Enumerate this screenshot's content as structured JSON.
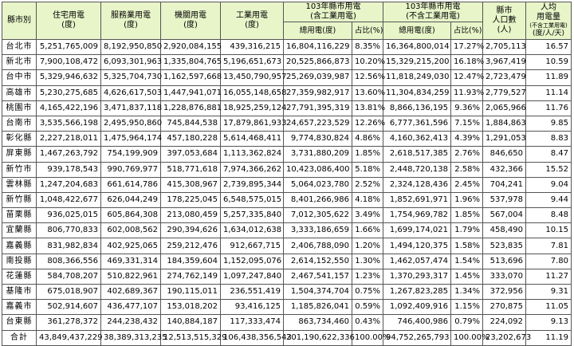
{
  "headers": {
    "county": "縣市別",
    "residential_l1": "住宅用電",
    "residential_l2": "(度)",
    "service_l1": "服務業用電",
    "service_l2": "(度)",
    "govt_l1": "機關用電",
    "govt_l2": "(度)",
    "industrial_l1": "工業用電",
    "industrial_l2": "(度)",
    "incl_l1": "103年縣市用電",
    "incl_l2": "(含工業用電)",
    "excl_l1": "103年縣市用電",
    "excl_l2": "(不含工業用電)",
    "total_usage": "總用電(度)",
    "share": "占比(%)",
    "pop_l1": "縣市",
    "pop_l2": "人口數",
    "pop_l3": "(人)",
    "percap_l1": "人均",
    "percap_l2": "用電量",
    "percap_l3": "(不含工業用電)",
    "percap_l4": "(度/人/天)"
  },
  "rows": [
    {
      "county": "台北市",
      "residential": "5,251,765,009",
      "service": "8,192,950,850",
      "govt": "2,920,084,155",
      "industrial": "439,316,215",
      "incl_total": "16,804,116,229",
      "incl_share": "8.35%",
      "excl_total": "16,364,800,014",
      "excl_share": "17.27%",
      "population": "2,705,113",
      "per_capita": "16.57"
    },
    {
      "county": "新北市",
      "residential": "7,900,108,472",
      "service": "6,093,301,963",
      "govt": "1,335,804,765",
      "industrial": "5,196,651,673",
      "incl_total": "20,525,866,873",
      "incl_share": "10.20%",
      "excl_total": "15,329,215,200",
      "excl_share": "16.18%",
      "population": "3,967,419",
      "per_capita": "10.59"
    },
    {
      "county": "台中市",
      "residential": "5,329,946,632",
      "service": "5,325,704,730",
      "govt": "1,162,597,668",
      "industrial": "13,450,790,957",
      "incl_total": "25,269,039,987",
      "incl_share": "12.56%",
      "excl_total": "11,818,249,030",
      "excl_share": "12.47%",
      "population": "2,723,479",
      "per_capita": "11.89"
    },
    {
      "county": "高雄市",
      "residential": "5,230,275,685",
      "service": "4,626,617,503",
      "govt": "1,447,941,071",
      "industrial": "16,055,148,658",
      "incl_total": "27,359,982,917",
      "incl_share": "13.60%",
      "excl_total": "11,304,834,259",
      "excl_share": "11.93%",
      "population": "2,779,527",
      "per_capita": "11.14"
    },
    {
      "county": "桃園市",
      "residential": "4,165,422,196",
      "service": "3,471,837,118",
      "govt": "1,228,876,881",
      "industrial": "18,925,259,124",
      "incl_total": "27,791,395,319",
      "incl_share": "13.81%",
      "excl_total": "8,866,136,195",
      "excl_share": "9.36%",
      "population": "2,065,966",
      "per_capita": "11.76"
    },
    {
      "county": "台南市",
      "residential": "3,535,566,198",
      "service": "2,495,950,860",
      "govt": "745,844,538",
      "industrial": "17,879,861,933",
      "incl_total": "24,657,223,529",
      "incl_share": "12.26%",
      "excl_total": "6,777,361,596",
      "excl_share": "7.15%",
      "population": "1,884,863",
      "per_capita": "9.85"
    },
    {
      "county": "彰化縣",
      "residential": "2,227,218,011",
      "service": "1,475,964,174",
      "govt": "457,180,228",
      "industrial": "5,614,468,411",
      "incl_total": "9,774,830,824",
      "incl_share": "4.86%",
      "excl_total": "4,160,362,413",
      "excl_share": "4.39%",
      "population": "1,291,053",
      "per_capita": "8.83"
    },
    {
      "county": "屏東縣",
      "residential": "1,467,263,792",
      "service": "754,199,909",
      "govt": "397,053,684",
      "industrial": "1,113,362,824",
      "incl_total": "3,731,880,209",
      "incl_share": "1.85%",
      "excl_total": "2,618,517,385",
      "excl_share": "2.76%",
      "population": "846,650",
      "per_capita": "8.47"
    },
    {
      "county": "新竹市",
      "residential": "939,178,543",
      "service": "990,769,977",
      "govt": "518,771,618",
      "industrial": "7,974,366,262",
      "incl_total": "10,423,086,400",
      "incl_share": "5.18%",
      "excl_total": "2,448,720,138",
      "excl_share": "2.58%",
      "population": "432,366",
      "per_capita": "15.52"
    },
    {
      "county": "雲林縣",
      "residential": "1,247,204,683",
      "service": "661,614,786",
      "govt": "415,308,967",
      "industrial": "2,739,895,344",
      "incl_total": "5,064,023,780",
      "incl_share": "2.52%",
      "excl_total": "2,324,128,436",
      "excl_share": "2.45%",
      "population": "704,241",
      "per_capita": "9.04"
    },
    {
      "county": "新竹縣",
      "residential": "1,048,422,677",
      "service": "626,044,249",
      "govt": "178,225,045",
      "industrial": "6,548,575,015",
      "incl_total": "8,401,266,986",
      "incl_share": "4.18%",
      "excl_total": "1,852,691,971",
      "excl_share": "1.96%",
      "population": "537,978",
      "per_capita": "9.44"
    },
    {
      "county": "苗栗縣",
      "residential": "936,025,015",
      "service": "605,864,308",
      "govt": "213,080,459",
      "industrial": "5,257,335,840",
      "incl_total": "7,012,305,622",
      "incl_share": "3.49%",
      "excl_total": "1,754,969,782",
      "excl_share": "1.85%",
      "population": "567,004",
      "per_capita": "8.48"
    },
    {
      "county": "宜蘭縣",
      "residential": "806,770,833",
      "service": "602,008,562",
      "govt": "290,394,626",
      "industrial": "1,634,012,638",
      "incl_total": "3,333,186,659",
      "incl_share": "1.66%",
      "excl_total": "1,699,174,021",
      "excl_share": "1.79%",
      "population": "458,490",
      "per_capita": "10.15"
    },
    {
      "county": "嘉義縣",
      "residential": "831,982,834",
      "service": "402,925,065",
      "govt": "259,212,476",
      "industrial": "912,667,715",
      "incl_total": "2,406,788,090",
      "incl_share": "1.20%",
      "excl_total": "1,494,120,375",
      "excl_share": "1.58%",
      "population": "523,835",
      "per_capita": "7.81"
    },
    {
      "county": "南投縣",
      "residential": "808,366,556",
      "service": "469,331,314",
      "govt": "184,359,604",
      "industrial": "1,152,095,076",
      "incl_total": "2,614,152,550",
      "incl_share": "1.30%",
      "excl_total": "1,462,057,474",
      "excl_share": "1.54%",
      "population": "513,696",
      "per_capita": "7.80"
    },
    {
      "county": "花蓮縣",
      "residential": "584,708,207",
      "service": "510,822,961",
      "govt": "274,762,149",
      "industrial": "1,097,247,840",
      "incl_total": "2,467,541,157",
      "incl_share": "1.23%",
      "excl_total": "1,370,293,317",
      "excl_share": "1.45%",
      "population": "333,070",
      "per_capita": "11.27"
    },
    {
      "county": "基隆市",
      "residential": "675,018,907",
      "service": "402,689,367",
      "govt": "190,115,011",
      "industrial": "236,551,419",
      "incl_total": "1,504,374,704",
      "incl_share": "0.75%",
      "excl_total": "1,267,823,285",
      "excl_share": "1.34%",
      "population": "372,956",
      "per_capita": "9.31"
    },
    {
      "county": "嘉義市",
      "residential": "502,914,607",
      "service": "436,477,107",
      "govt": "153,018,202",
      "industrial": "93,416,125",
      "incl_total": "1,185,826,041",
      "incl_share": "0.59%",
      "excl_total": "1,092,409,916",
      "excl_share": "1.15%",
      "population": "270,875",
      "per_capita": "11.05"
    },
    {
      "county": "台東縣",
      "residential": "361,278,372",
      "service": "244,238,432",
      "govt": "140,884,187",
      "industrial": "117,333,474",
      "incl_total": "863,734,460",
      "incl_share": "0.43%",
      "excl_total": "746,400,986",
      "excl_share": "0.79%",
      "population": "224,092",
      "per_capita": "9.13"
    }
  ],
  "total": {
    "county": "合計",
    "residential": "43,849,437,229",
    "service": "38,389,313,235",
    "govt": "12,513,515,329",
    "industrial": "106,438,356,543",
    "incl_total": "201,190,622,336",
    "incl_share": "100.00%",
    "excl_total": "94,752,265,793",
    "excl_share": "100.00%",
    "population": "23,202,673",
    "per_capita": "11.19"
  }
}
